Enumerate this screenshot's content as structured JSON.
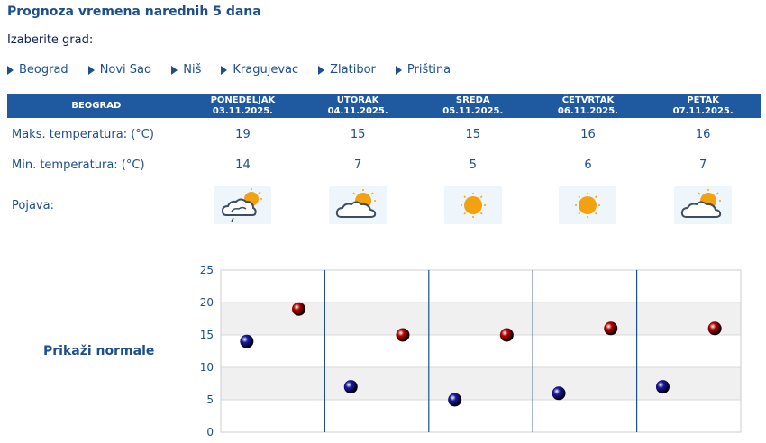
{
  "page": {
    "title": "Prognoza vremena narednih 5 dana",
    "select_city_label": "Izaberite grad:"
  },
  "cities": [
    "Beograd",
    "Novi Sad",
    "Niš",
    "Kragujevac",
    "Zlatibor",
    "Priština"
  ],
  "forecast": {
    "city": "BEOGRAD",
    "max_label": "Maks. temperatura: (°C)",
    "min_label": "Min. temperatura: (°C)",
    "icon_label": "Pojava:",
    "days": [
      {
        "name": "PONEDELJAK",
        "date": "03.11.2025.",
        "max": "19",
        "min": "14",
        "icon": "cloudy-sun-rain-icon"
      },
      {
        "name": "UTORAK",
        "date": "04.11.2025.",
        "max": "15",
        "min": "7",
        "icon": "partly-cloudy-icon"
      },
      {
        "name": "SREDA",
        "date": "05.11.2025.",
        "max": "15",
        "min": "5",
        "icon": "sunny-icon"
      },
      {
        "name": "ČETVRTAK",
        "date": "06.11.2025.",
        "max": "16",
        "min": "6",
        "icon": "sunny-icon"
      },
      {
        "name": "PETAK",
        "date": "07.11.2025.",
        "max": "16",
        "min": "7",
        "icon": "partly-cloudy-icon"
      }
    ]
  },
  "normals_link": "Prikaži normale",
  "colors": {
    "header": "#1f5aa0",
    "text": "#1d4f8c",
    "min_dot": "#1a1aa8",
    "max_dot": "#c00000"
  },
  "chart_data": {
    "type": "scatter",
    "categories": [
      "03.11.2025.",
      "04.11.2025.",
      "05.11.2025.",
      "06.11.2025.",
      "07.11.2025."
    ],
    "series": [
      {
        "name": "",
        "color": "#1a1aa8",
        "values": [
          14,
          7,
          5,
          6,
          7
        ]
      },
      {
        "name": "",
        "color": "#c00000",
        "values": [
          19,
          15,
          15,
          16,
          16
        ]
      }
    ],
    "ylim": [
      0,
      25
    ],
    "yticks": [
      "0",
      "5",
      "10",
      "15",
      "20",
      "25"
    ],
    "grid": true,
    "xlabel": "",
    "ylabel": "",
    "title": ""
  }
}
